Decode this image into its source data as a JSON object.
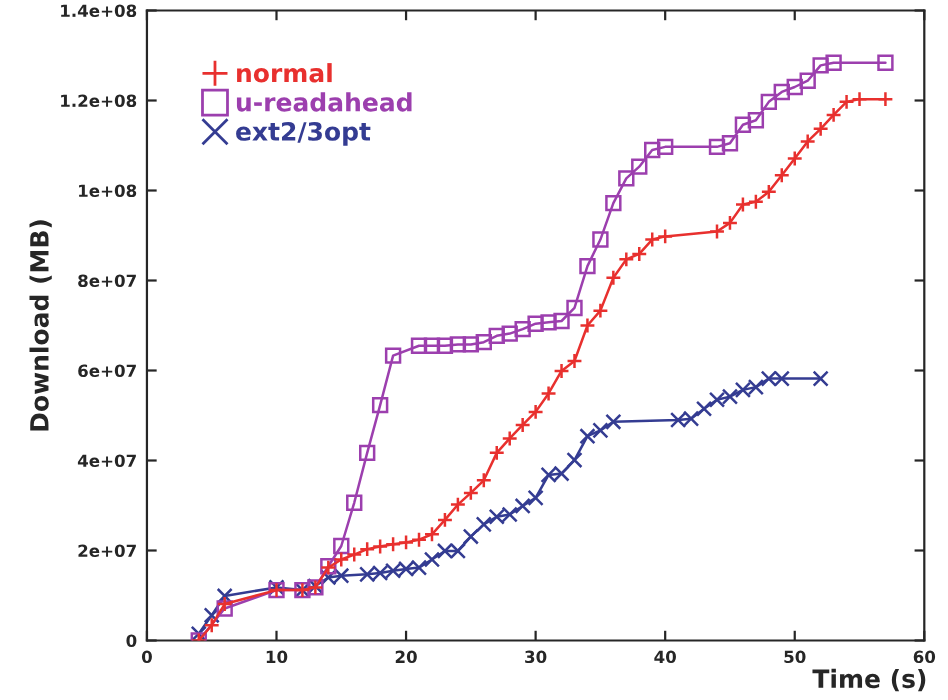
{
  "chart_data": {
    "type": "line",
    "xlabel": "Time (s)",
    "ylabel": "Download (MB)",
    "xlim": [
      0,
      60
    ],
    "xticks": [
      0,
      10,
      20,
      30,
      40,
      50,
      60
    ],
    "ylim": [
      0,
      140000000.0
    ],
    "yticks": [
      0,
      {
        "value": 20000000.0,
        "label": "2e+07"
      },
      {
        "value": 40000000.0,
        "label": "4e+07"
      },
      {
        "value": 60000000.0,
        "label": "6e+07"
      },
      {
        "value": 80000000.0,
        "label": "8e+07"
      },
      {
        "value": 100000000.0,
        "label": "1e+08"
      },
      {
        "value": 120000000.0,
        "label": "1.2e+08"
      },
      {
        "value": 140000000.0,
        "label": "1.4e+08"
      }
    ],
    "grid": false,
    "legend": "top left",
    "line_style": "solid",
    "series": [
      {
        "name": "normal",
        "color": "#e8302e",
        "marker": "cross",
        "x": [
          4,
          5,
          6,
          10,
          12,
          13,
          14,
          15,
          16,
          17,
          18,
          19,
          20,
          21,
          22,
          23,
          24,
          25,
          26,
          27,
          28,
          29,
          30,
          31,
          32,
          33,
          34,
          35,
          36,
          37,
          38,
          39,
          40,
          44,
          45,
          46,
          47,
          48,
          49,
          50,
          51,
          52,
          53,
          54,
          55,
          57
        ],
        "values": [
          0,
          3400000.0,
          8100000.0,
          11200000.0,
          11200000.0,
          11800000.0,
          16200000.0,
          18000000.0,
          19100000.0,
          20300000.0,
          20900000.0,
          21400000.0,
          21800000.0,
          22400000.0,
          23600000.0,
          26800000.0,
          30200000.0,
          32800000.0,
          35600000.0,
          41700000.0,
          44900000.0,
          47900000.0,
          50800000.0,
          54900000.0,
          59900000.0,
          62100000.0,
          70000000.0,
          73300000.0,
          80600000.0,
          84700000.0,
          85900000.0,
          89100000.0,
          89800000.0,
          90900000.0,
          92800000.0,
          96900000.0,
          97500000.0,
          99700000.0,
          103400000.0,
          107100000.0,
          110900000.0,
          113700000.0,
          116800000.0,
          119700000.0,
          120300000.0,
          120300000.0
        ]
      },
      {
        "name": "u-readahead",
        "color": "#9c3fae",
        "marker": "square",
        "x": [
          4,
          6,
          10,
          12,
          13,
          14,
          15,
          16,
          17,
          18,
          19,
          21,
          22,
          23,
          24,
          25,
          26,
          27,
          28,
          29,
          30,
          31,
          32,
          33,
          34,
          35,
          36,
          37,
          38,
          39,
          40,
          44,
          45,
          46,
          47,
          48,
          49,
          50,
          51,
          52,
          53,
          57
        ],
        "values": [
          0,
          7100000.0,
          11200000.0,
          11200000.0,
          11800000.0,
          16500000.0,
          21000000.0,
          30600000.0,
          41700000.0,
          52300000.0,
          63300000.0,
          65500000.0,
          65500000.0,
          65500000.0,
          65800000.0,
          65800000.0,
          66300000.0,
          67700000.0,
          68200000.0,
          69200000.0,
          70400000.0,
          70700000.0,
          71000000.0,
          73900000.0,
          83200000.0,
          89100000.0,
          97200000.0,
          102700000.0,
          105300000.0,
          109000000.0,
          109700000.0,
          109700000.0,
          110500000.0,
          114600000.0,
          115600000.0,
          119700000.0,
          121900000.0,
          123000000.0,
          124400000.0,
          127800000.0,
          128400000.0,
          128400000.0
        ]
      },
      {
        "name": "ext2/3opt",
        "color": "#343c92",
        "marker": "x",
        "x": [
          4,
          5,
          6,
          10,
          12,
          13,
          14,
          15,
          17,
          18,
          19,
          20,
          21,
          22,
          23,
          24,
          25,
          26,
          27,
          28,
          29,
          30,
          31,
          32,
          33,
          34,
          35,
          36,
          41,
          42,
          43,
          44,
          45,
          46,
          47,
          48,
          49,
          52
        ],
        "values": [
          1500000.0,
          5600000.0,
          9900000.0,
          11800000.0,
          11200000.0,
          12100000.0,
          14000000.0,
          14400000.0,
          14700000.0,
          15000000.0,
          15500000.0,
          15900000.0,
          16200000.0,
          18000000.0,
          19900000.0,
          19900000.0,
          23100000.0,
          25800000.0,
          27500000.0,
          28000000.0,
          29900000.0,
          31700000.0,
          36800000.0,
          37100000.0,
          40100000.0,
          45400000.0,
          46700000.0,
          48600000.0,
          49000000.0,
          49300000.0,
          51500000.0,
          53500000.0,
          54200000.0,
          55700000.0,
          56300000.0,
          58200000.0,
          58200000.0,
          58200000.0
        ]
      }
    ]
  }
}
